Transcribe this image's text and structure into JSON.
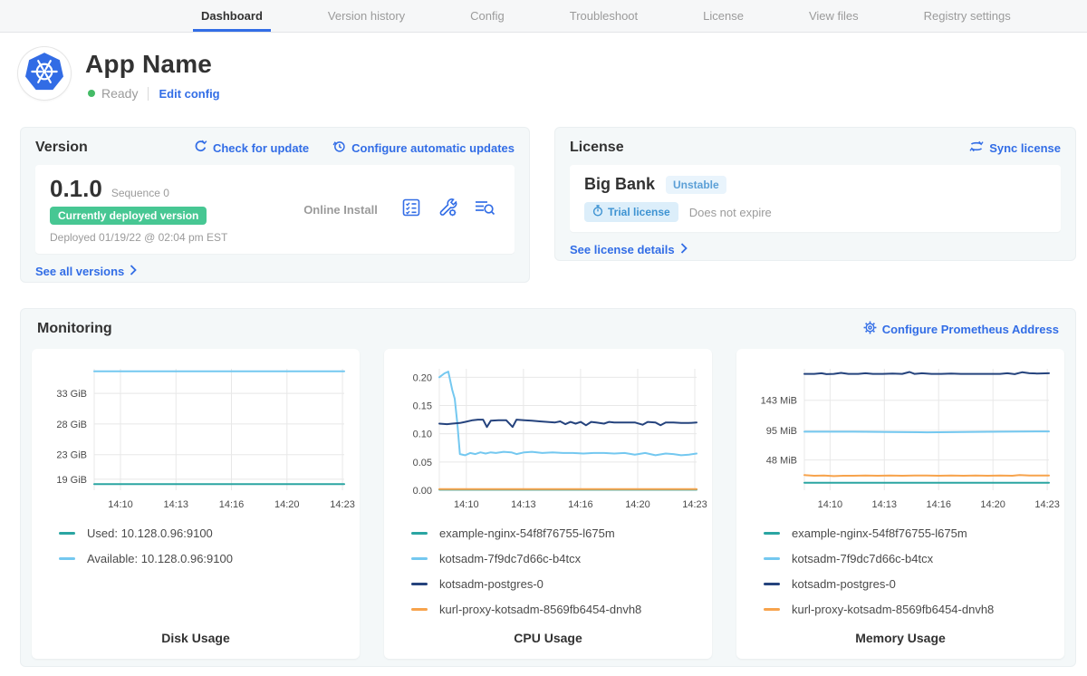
{
  "nav": {
    "tabs": [
      {
        "label": "Dashboard",
        "active": true
      },
      {
        "label": "Version history",
        "active": false
      },
      {
        "label": "Config",
        "active": false
      },
      {
        "label": "Troubleshoot",
        "active": false
      },
      {
        "label": "License",
        "active": false
      },
      {
        "label": "View files",
        "active": false
      },
      {
        "label": "Registry settings",
        "active": false
      }
    ]
  },
  "header": {
    "app_name": "App Name",
    "status": "Ready",
    "edit_config": "Edit config"
  },
  "version_card": {
    "title": "Version",
    "check_for_update": "Check for update",
    "configure_auto_updates": "Configure automatic updates",
    "version": "0.1.0",
    "sequence": "Sequence 0",
    "deployed_badge": "Currently deployed version",
    "deployed_at": "Deployed 01/19/22 @ 02:04 pm EST",
    "install_type": "Online Install",
    "see_all_versions": "See all versions"
  },
  "license_card": {
    "title": "License",
    "sync_license": "Sync license",
    "assignee": "Big Bank",
    "channel": "Unstable",
    "type_badge": "Trial license",
    "expiration": "Does not expire",
    "see_license_details": "See license details"
  },
  "monitoring": {
    "title": "Monitoring",
    "configure_prometheus": "Configure Prometheus Address"
  },
  "colors": {
    "accent_blue": "#326DE6",
    "ready_dot_green": "#44bb66",
    "deployed_badge_green": "#47c793",
    "series_teal": "#2aa5a2",
    "series_light_blue": "#74c8f0",
    "series_navy": "#25437d",
    "series_orange": "#f7a34c"
  },
  "chart_data": [
    {
      "type": "line",
      "title": "Disk Usage",
      "xlabel": "",
      "ylabel": "",
      "grid": true,
      "legend_position": "bottom-left",
      "pad_left": 58,
      "ylim": [
        17.2,
        37.0
      ],
      "yticks": [
        {
          "value": 33,
          "label": "33 GiB"
        },
        {
          "value": 28,
          "label": "28 GiB"
        },
        {
          "value": 23,
          "label": "23 GiB"
        },
        {
          "value": 19,
          "label": "19 GiB"
        }
      ],
      "xticks": [
        {
          "pos": 0.105,
          "label": "14:10"
        },
        {
          "pos": 0.327,
          "label": "14:13"
        },
        {
          "pos": 0.549,
          "label": "14:16"
        },
        {
          "pos": 0.771,
          "label": "14:20"
        },
        {
          "pos": 0.993,
          "label": "14:23"
        }
      ],
      "series": [
        {
          "name": "Used: 10.128.0.96:9100",
          "color": "#2aa5a2",
          "points": [
            [
              0,
              18.2
            ],
            [
              1,
              18.2
            ]
          ]
        },
        {
          "name": "Available: 10.128.0.96:9100",
          "color": "#74c8f0",
          "points": [
            [
              0,
              36.6
            ],
            [
              1,
              36.6
            ]
          ]
        }
      ]
    },
    {
      "type": "line",
      "title": "CPU Usage",
      "xlabel": "",
      "ylabel": "",
      "grid": true,
      "legend_position": "bottom-left",
      "pad_left": 50,
      "ylim": [
        0,
        0.215
      ],
      "yticks": [
        {
          "value": 0.2,
          "label": "0.20"
        },
        {
          "value": 0.15,
          "label": "0.15"
        },
        {
          "value": 0.1,
          "label": "0.10"
        },
        {
          "value": 0.05,
          "label": "0.05"
        },
        {
          "value": 0.0,
          "label": "0.00"
        }
      ],
      "xticks": [
        {
          "pos": 0.105,
          "label": "14:10"
        },
        {
          "pos": 0.327,
          "label": "14:13"
        },
        {
          "pos": 0.549,
          "label": "14:16"
        },
        {
          "pos": 0.771,
          "label": "14:20"
        },
        {
          "pos": 0.993,
          "label": "14:23"
        }
      ],
      "series": [
        {
          "name": "example-nginx-54f8f76755-l675m",
          "color": "#2aa5a2",
          "points": [
            [
              0,
              0.001
            ],
            [
              1,
              0.001
            ]
          ]
        },
        {
          "name": "kotsadm-7f9dc7d66c-b4tcx",
          "color": "#74c8f0",
          "points": [
            [
              0,
              0.2
            ],
            [
              0.02,
              0.207
            ],
            [
              0.035,
              0.21
            ],
            [
              0.05,
              0.178
            ],
            [
              0.06,
              0.162
            ],
            [
              0.07,
              0.118
            ],
            [
              0.08,
              0.064
            ],
            [
              0.1,
              0.062
            ],
            [
              0.12,
              0.066
            ],
            [
              0.14,
              0.064
            ],
            [
              0.16,
              0.067
            ],
            [
              0.18,
              0.065
            ],
            [
              0.2,
              0.067
            ],
            [
              0.22,
              0.066
            ],
            [
              0.25,
              0.068
            ],
            [
              0.28,
              0.067
            ],
            [
              0.3,
              0.064
            ],
            [
              0.33,
              0.067
            ],
            [
              0.36,
              0.068
            ],
            [
              0.4,
              0.066
            ],
            [
              0.44,
              0.067
            ],
            [
              0.48,
              0.066
            ],
            [
              0.52,
              0.066
            ],
            [
              0.56,
              0.065
            ],
            [
              0.6,
              0.066
            ],
            [
              0.64,
              0.066
            ],
            [
              0.68,
              0.065
            ],
            [
              0.72,
              0.066
            ],
            [
              0.76,
              0.063
            ],
            [
              0.8,
              0.066
            ],
            [
              0.84,
              0.062
            ],
            [
              0.88,
              0.065
            ],
            [
              0.91,
              0.064
            ],
            [
              0.94,
              0.062
            ],
            [
              0.97,
              0.063
            ],
            [
              1,
              0.065
            ]
          ]
        },
        {
          "name": "kotsadm-postgres-0",
          "color": "#25437d",
          "points": [
            [
              0,
              0.118
            ],
            [
              0.03,
              0.117
            ],
            [
              0.05,
              0.118
            ],
            [
              0.08,
              0.119
            ],
            [
              0.1,
              0.121
            ],
            [
              0.13,
              0.124
            ],
            [
              0.15,
              0.125
            ],
            [
              0.17,
              0.125
            ],
            [
              0.185,
              0.112
            ],
            [
              0.2,
              0.123
            ],
            [
              0.23,
              0.124
            ],
            [
              0.26,
              0.124
            ],
            [
              0.285,
              0.112
            ],
            [
              0.3,
              0.125
            ],
            [
              0.33,
              0.124
            ],
            [
              0.36,
              0.123
            ],
            [
              0.39,
              0.122
            ],
            [
              0.42,
              0.121
            ],
            [
              0.45,
              0.12
            ],
            [
              0.47,
              0.122
            ],
            [
              0.49,
              0.117
            ],
            [
              0.51,
              0.121
            ],
            [
              0.53,
              0.118
            ],
            [
              0.55,
              0.121
            ],
            [
              0.57,
              0.115
            ],
            [
              0.59,
              0.121
            ],
            [
              0.61,
              0.12
            ],
            [
              0.64,
              0.118
            ],
            [
              0.66,
              0.121
            ],
            [
              0.68,
              0.12
            ],
            [
              0.72,
              0.12
            ],
            [
              0.76,
              0.12
            ],
            [
              0.79,
              0.116
            ],
            [
              0.81,
              0.121
            ],
            [
              0.84,
              0.12
            ],
            [
              0.86,
              0.115
            ],
            [
              0.88,
              0.12
            ],
            [
              0.91,
              0.12
            ],
            [
              0.94,
              0.119
            ],
            [
              0.97,
              0.119
            ],
            [
              1,
              0.12
            ]
          ]
        },
        {
          "name": "kurl-proxy-kotsadm-8569fb6454-dnvh8",
          "color": "#f7a34c",
          "points": [
            [
              0,
              0.002
            ],
            [
              1,
              0.002
            ]
          ]
        }
      ]
    },
    {
      "type": "line",
      "title": "Memory Usage",
      "xlabel": "",
      "ylabel": "",
      "grid": true,
      "legend_position": "bottom-left",
      "pad_left": 64,
      "ylim": [
        0,
        193
      ],
      "yticks": [
        {
          "value": 143,
          "label": "143 MiB"
        },
        {
          "value": 95,
          "label": "95 MiB"
        },
        {
          "value": 48,
          "label": "48 MiB"
        }
      ],
      "xticks": [
        {
          "pos": 0.105,
          "label": "14:10"
        },
        {
          "pos": 0.327,
          "label": "14:13"
        },
        {
          "pos": 0.549,
          "label": "14:16"
        },
        {
          "pos": 0.771,
          "label": "14:20"
        },
        {
          "pos": 0.993,
          "label": "14:23"
        }
      ],
      "series": [
        {
          "name": "example-nginx-54f8f76755-l675m",
          "color": "#2aa5a2",
          "points": [
            [
              0,
              12
            ],
            [
              1,
              12
            ]
          ]
        },
        {
          "name": "kotsadm-7f9dc7d66c-b4tcx",
          "color": "#74c8f0",
          "points": [
            [
              0,
              93
            ],
            [
              0.2,
              93
            ],
            [
              0.35,
              92.5
            ],
            [
              0.5,
              92
            ],
            [
              0.65,
              92.5
            ],
            [
              0.8,
              93
            ],
            [
              1,
              93.5
            ]
          ]
        },
        {
          "name": "kotsadm-postgres-0",
          "color": "#25437d",
          "points": [
            [
              0,
              185
            ],
            [
              0.04,
              185
            ],
            [
              0.07,
              186
            ],
            [
              0.09,
              184.5
            ],
            [
              0.12,
              185
            ],
            [
              0.15,
              186.5
            ],
            [
              0.18,
              185
            ],
            [
              0.22,
              185
            ],
            [
              0.25,
              186
            ],
            [
              0.28,
              185
            ],
            [
              0.32,
              185
            ],
            [
              0.36,
              185.5
            ],
            [
              0.4,
              185
            ],
            [
              0.43,
              188
            ],
            [
              0.45,
              185
            ],
            [
              0.48,
              186
            ],
            [
              0.52,
              185
            ],
            [
              0.56,
              185
            ],
            [
              0.6,
              185.5
            ],
            [
              0.64,
              185
            ],
            [
              0.68,
              185
            ],
            [
              0.72,
              185
            ],
            [
              0.76,
              185
            ],
            [
              0.8,
              185
            ],
            [
              0.83,
              186
            ],
            [
              0.86,
              184.5
            ],
            [
              0.89,
              187.5
            ],
            [
              0.92,
              186
            ],
            [
              0.95,
              185.5
            ],
            [
              1,
              186
            ]
          ]
        },
        {
          "name": "kurl-proxy-kotsadm-8569fb6454-dnvh8",
          "color": "#f7a34c",
          "points": [
            [
              0,
              24
            ],
            [
              0.04,
              23
            ],
            [
              0.08,
              23.5
            ],
            [
              0.12,
              22.5
            ],
            [
              0.16,
              23
            ],
            [
              0.2,
              23
            ],
            [
              0.25,
              23.5
            ],
            [
              0.3,
              23
            ],
            [
              0.35,
              23.5
            ],
            [
              0.4,
              23
            ],
            [
              0.45,
              23.5
            ],
            [
              0.5,
              23.5
            ],
            [
              0.55,
              23
            ],
            [
              0.6,
              23.5
            ],
            [
              0.65,
              23
            ],
            [
              0.7,
              23.5
            ],
            [
              0.75,
              23
            ],
            [
              0.8,
              23.5
            ],
            [
              0.85,
              23
            ],
            [
              0.88,
              24
            ],
            [
              0.92,
              23.5
            ],
            [
              1,
              23.5
            ]
          ]
        }
      ]
    }
  ]
}
